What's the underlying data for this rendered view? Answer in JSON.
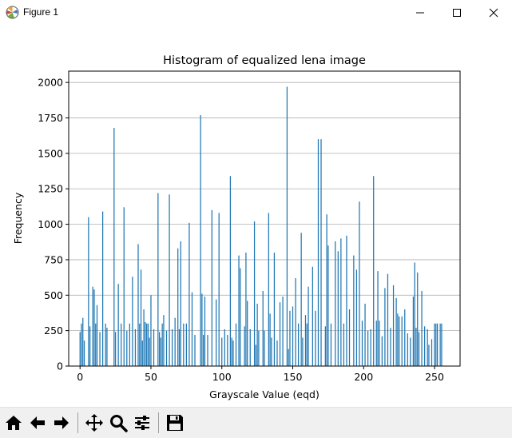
{
  "window": {
    "title": "Figure 1",
    "icon": "matplotlib-figure-icon",
    "controls": [
      "minimize-icon",
      "maximize-icon",
      "close-icon"
    ]
  },
  "toolbar": {
    "buttons": [
      "home-icon",
      "back-arrow-icon",
      "forward-arrow-icon",
      "pan-icon",
      "zoom-icon",
      "configure-subplots-icon",
      "save-icon"
    ]
  },
  "colors": {
    "bar": "#1f77b4",
    "grid": "#b0b0b0"
  },
  "chart_data": {
    "type": "bar",
    "title": "Histogram of equalized lena image",
    "xlabel": "Grayscale Value (eqd)",
    "ylabel": "Frequency",
    "xlim": [
      -8,
      268
    ],
    "ylim": [
      0,
      2080
    ],
    "xticks": [
      0,
      50,
      100,
      150,
      200,
      250
    ],
    "yticks": [
      0,
      250,
      500,
      750,
      1000,
      1250,
      1500,
      1750,
      2000
    ],
    "grid": "y",
    "x": [
      0,
      1,
      2,
      3,
      6,
      7,
      9,
      10,
      11,
      12,
      14,
      16,
      18,
      19,
      24,
      25,
      27,
      29,
      31,
      33,
      35,
      37,
      39,
      41,
      42,
      43,
      44,
      45,
      46,
      47,
      48,
      49,
      50,
      52,
      55,
      56,
      57,
      58,
      59,
      61,
      63,
      65,
      67,
      69,
      70,
      71,
      73,
      75,
      77,
      79,
      81,
      85,
      86,
      87,
      88,
      90,
      93,
      96,
      98,
      100,
      102,
      104,
      106,
      107,
      108,
      110,
      112,
      113,
      116,
      117,
      118,
      120,
      123,
      124,
      125,
      126,
      129,
      130,
      133,
      134,
      135,
      137,
      139,
      141,
      143,
      146,
      147,
      148,
      150,
      152,
      154,
      156,
      157,
      159,
      160,
      161,
      164,
      166,
      168,
      170,
      173,
      174,
      175,
      177,
      180,
      182,
      184,
      186,
      188,
      190,
      193,
      195,
      197,
      199,
      201,
      203,
      205,
      207,
      209,
      210,
      211,
      213,
      215,
      217,
      219,
      221,
      223,
      224,
      225,
      227,
      229,
      231,
      233,
      235,
      236,
      237,
      238,
      239,
      241,
      243,
      245,
      246,
      248,
      250,
      251,
      252,
      254,
      255
    ],
    "values": [
      240,
      300,
      340,
      180,
      1050,
      280,
      560,
      540,
      300,
      430,
      240,
      1090,
      300,
      270,
      1680,
      240,
      580,
      300,
      1120,
      250,
      300,
      630,
      260,
      860,
      300,
      680,
      180,
      400,
      310,
      300,
      300,
      200,
      500,
      260,
      1220,
      240,
      200,
      300,
      360,
      250,
      1210,
      260,
      340,
      830,
      260,
      880,
      300,
      300,
      1010,
      520,
      220,
      1770,
      510,
      220,
      490,
      220,
      1100,
      470,
      1080,
      200,
      260,
      220,
      1340,
      200,
      180,
      300,
      780,
      690,
      280,
      800,
      460,
      260,
      1020,
      150,
      440,
      250,
      530,
      250,
      1080,
      370,
      200,
      800,
      180,
      450,
      490,
      1970,
      120,
      390,
      420,
      620,
      300,
      940,
      200,
      360,
      300,
      560,
      700,
      390,
      1600,
      1600,
      280,
      1070,
      850,
      300,
      880,
      810,
      900,
      300,
      920,
      400,
      780,
      680,
      1160,
      320,
      440,
      250,
      260,
      1340,
      320,
      670,
      320,
      210,
      550,
      650,
      270,
      570,
      480,
      370,
      350,
      350,
      400,
      230,
      200,
      490,
      730,
      270,
      660,
      240,
      530,
      280,
      260,
      150,
      190,
      300,
      300,
      300,
      300,
      300
    ]
  }
}
